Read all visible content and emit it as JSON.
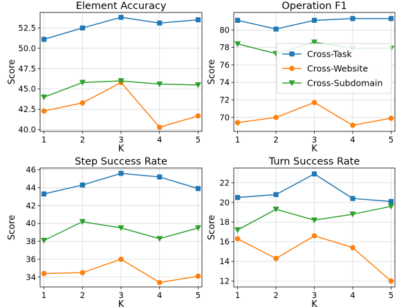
{
  "colors": {
    "Cross-Task": "#1f77b4",
    "Cross-Website": "#ff7f0e",
    "Cross-Subdomain": "#2ca02c"
  },
  "markers": {
    "Cross-Task": "square",
    "Cross-Website": "circle",
    "Cross-Subdomain": "triangle-down"
  },
  "chart_data": [
    {
      "type": "line",
      "title": "Element Accuracy",
      "xlabel": "K",
      "ylabel": "Score",
      "x": [
        1,
        2,
        3,
        4,
        5
      ],
      "xticks": [
        "1",
        "2",
        "3",
        "4",
        "5"
      ],
      "ylim": [
        39.8,
        54.4
      ],
      "yticks": [
        40.0,
        42.5,
        45.0,
        47.5,
        50.0,
        52.5
      ],
      "ytick_labels": [
        "40.0",
        "42.5",
        "45.0",
        "47.5",
        "50.0",
        "52.5"
      ],
      "grid": true,
      "legend": false,
      "series": [
        {
          "name": "Cross-Task",
          "values": [
            51.1,
            52.5,
            53.8,
            53.1,
            53.5
          ]
        },
        {
          "name": "Cross-Website",
          "values": [
            42.3,
            43.3,
            45.8,
            40.3,
            41.7
          ]
        },
        {
          "name": "Cross-Subdomain",
          "values": [
            44.0,
            45.8,
            46.0,
            45.6,
            45.5
          ]
        }
      ]
    },
    {
      "type": "line",
      "title": "Operation F1",
      "xlabel": "K",
      "ylabel": "Score",
      "x": [
        1,
        2,
        3,
        4,
        5
      ],
      "xticks": [
        "1",
        "2",
        "3",
        "4",
        "5"
      ],
      "ylim": [
        68.4,
        82.0
      ],
      "yticks": [
        70,
        72,
        74,
        76,
        78,
        80
      ],
      "ytick_labels": [
        "70",
        "72",
        "74",
        "76",
        "78",
        "80"
      ],
      "grid": true,
      "legend": true,
      "legend_position": "center-right",
      "series": [
        {
          "name": "Cross-Task",
          "values": [
            81.1,
            80.1,
            81.1,
            81.3,
            81.3
          ]
        },
        {
          "name": "Cross-Website",
          "values": [
            69.4,
            70.0,
            71.7,
            69.1,
            69.9
          ]
        },
        {
          "name": "Cross-Subdomain",
          "values": [
            78.4,
            77.3,
            78.6,
            77.9,
            77.9
          ]
        }
      ]
    },
    {
      "type": "line",
      "title": "Step Success Rate",
      "xlabel": "K",
      "ylabel": "Score",
      "x": [
        1,
        2,
        3,
        4,
        5
      ],
      "xticks": [
        "1",
        "2",
        "3",
        "4",
        "5"
      ],
      "ylim": [
        32.9,
        46.2
      ],
      "yticks": [
        34,
        36,
        38,
        40,
        42,
        44,
        46
      ],
      "ytick_labels": [
        "34",
        "36",
        "38",
        "40",
        "42",
        "44",
        "46"
      ],
      "grid": true,
      "legend": false,
      "series": [
        {
          "name": "Cross-Task",
          "values": [
            43.3,
            44.3,
            45.6,
            45.2,
            43.9
          ]
        },
        {
          "name": "Cross-Website",
          "values": [
            34.4,
            34.5,
            36.0,
            33.4,
            34.1
          ]
        },
        {
          "name": "Cross-Subdomain",
          "values": [
            38.1,
            40.2,
            39.5,
            38.3,
            39.5
          ]
        }
      ]
    },
    {
      "type": "line",
      "title": "Turn Success Rate",
      "xlabel": "K",
      "ylabel": "Score",
      "x": [
        1,
        2,
        3,
        4,
        5
      ],
      "xticks": [
        "1",
        "2",
        "3",
        "4",
        "5"
      ],
      "ylim": [
        11.4,
        23.5
      ],
      "yticks": [
        12,
        14,
        16,
        18,
        20,
        22
      ],
      "ytick_labels": [
        "12",
        "14",
        "16",
        "18",
        "20",
        "22"
      ],
      "grid": true,
      "legend": false,
      "series": [
        {
          "name": "Cross-Task",
          "values": [
            20.5,
            20.8,
            22.9,
            20.4,
            20.1
          ]
        },
        {
          "name": "Cross-Website",
          "values": [
            16.3,
            14.3,
            16.6,
            15.4,
            12.0
          ]
        },
        {
          "name": "Cross-Subdomain",
          "values": [
            17.2,
            19.3,
            18.2,
            18.8,
            19.6
          ]
        }
      ]
    }
  ]
}
